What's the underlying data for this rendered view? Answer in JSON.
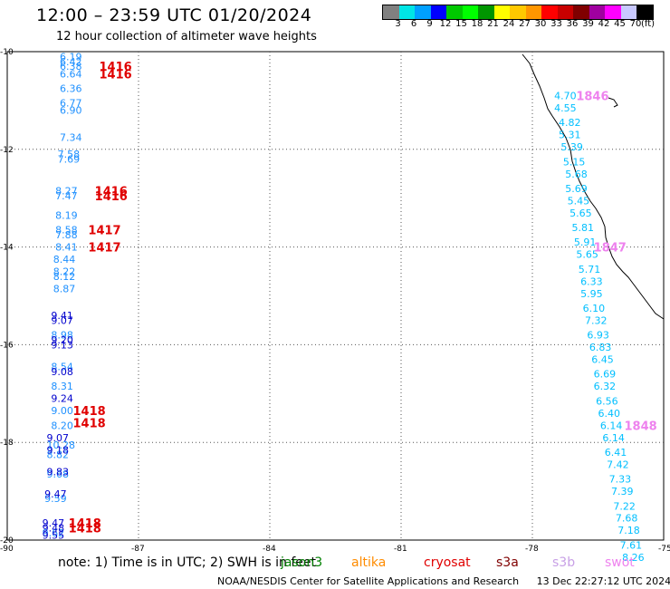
{
  "header": {
    "title": "12:00 – 23:59 UTC 01/20/2024",
    "subtitle": "12 hour collection of altimeter wave heights"
  },
  "colorbar": {
    "colors": [
      "#808080",
      "#00e5e5",
      "#00a0ff",
      "#0000ff",
      "#00c800",
      "#00ff00",
      "#009600",
      "#ffff00",
      "#ffc800",
      "#ff9600",
      "#ff0000",
      "#c80000",
      "#800000",
      "#a000a0",
      "#ff00ff",
      "#c8c8ff",
      "#000000"
    ],
    "labels": [
      "3",
      "6",
      "9",
      "12",
      "15",
      "18",
      "21",
      "24",
      "27",
      "30",
      "33",
      "36",
      "39",
      "42",
      "45",
      "70",
      "(ft)"
    ]
  },
  "axes": {
    "lat_labels": [
      "-10",
      "-12",
      "-14",
      "-16",
      "-18",
      "-20"
    ],
    "lon_labels": [
      "-90",
      "-87",
      "-84",
      "-81",
      "-78",
      "-75"
    ]
  },
  "tracks": [
    {
      "color": "#1e90ff",
      "items": [
        {
          "lon": -88.8,
          "lat": -10.1,
          "v": "6.19"
        },
        {
          "lon": -88.8,
          "lat": -10.2,
          "v": "6.42"
        },
        {
          "lon": -88.8,
          "lat": -10.3,
          "v": "6.38"
        },
        {
          "lon": -88.8,
          "lat": -10.45,
          "v": "6.64"
        },
        {
          "lon": -88.8,
          "lat": -10.75,
          "v": "6.36"
        },
        {
          "lon": -88.8,
          "lat": -11.05,
          "v": "6.77"
        },
        {
          "lon": -88.8,
          "lat": -11.2,
          "v": "6.90"
        },
        {
          "lon": -88.8,
          "lat": -11.75,
          "v": "7.34"
        },
        {
          "lon": -88.85,
          "lat": -12.1,
          "v": "7.58"
        },
        {
          "lon": -88.85,
          "lat": -12.2,
          "v": "7.69"
        },
        {
          "lon": -88.9,
          "lat": -12.85,
          "v": "8.27"
        },
        {
          "lon": -88.9,
          "lat": -12.95,
          "v": "7.47"
        },
        {
          "lon": -88.9,
          "lat": -13.35,
          "v": "8.19"
        },
        {
          "lon": -88.9,
          "lat": -13.65,
          "v": "8.58"
        },
        {
          "lon": -88.9,
          "lat": -13.75,
          "v": "7.88"
        },
        {
          "lon": -88.9,
          "lat": -14.0,
          "v": "8.41"
        },
        {
          "lon": -88.95,
          "lat": -14.25,
          "v": "8.44"
        },
        {
          "lon": -88.95,
          "lat": -14.5,
          "v": "8.22"
        },
        {
          "lon": -88.95,
          "lat": -14.6,
          "v": "8.12"
        },
        {
          "lon": -88.95,
          "lat": -14.85,
          "v": "8.87"
        },
        {
          "lon": -89.0,
          "lat": -15.8,
          "v": "8.98"
        },
        {
          "lon": -89.0,
          "lat": -16.45,
          "v": "8.54"
        },
        {
          "lon": -89.0,
          "lat": -16.85,
          "v": "8.31"
        },
        {
          "lon": -89.0,
          "lat": -17.35,
          "v": "9.00"
        },
        {
          "lon": -89.0,
          "lat": -17.65,
          "v": "8.20"
        },
        {
          "lon": -89.1,
          "lat": -18.05,
          "v": "10.28"
        },
        {
          "lon": -89.1,
          "lat": -18.25,
          "v": "8.82"
        },
        {
          "lon": -89.1,
          "lat": -18.65,
          "v": "9.68"
        },
        {
          "lon": -89.15,
          "lat": -19.15,
          "v": "9.59"
        },
        {
          "lon": -89.2,
          "lat": -19.85,
          "v": "9.62"
        }
      ]
    },
    {
      "color": "#0000cd",
      "items": [
        {
          "lon": -89.0,
          "lat": -15.4,
          "v": "9.41"
        },
        {
          "lon": -89.0,
          "lat": -15.5,
          "v": "9.07"
        },
        {
          "lon": -89.0,
          "lat": -15.9,
          "v": "9.20"
        },
        {
          "lon": -89.0,
          "lat": -16.0,
          "v": "9.13"
        },
        {
          "lon": -89.0,
          "lat": -16.55,
          "v": "9.08"
        },
        {
          "lon": -89.0,
          "lat": -17.1,
          "v": "9.24"
        },
        {
          "lon": -89.1,
          "lat": -17.9,
          "v": "9.07"
        },
        {
          "lon": -89.1,
          "lat": -18.15,
          "v": "9.18"
        },
        {
          "lon": -89.1,
          "lat": -18.6,
          "v": "9.83"
        },
        {
          "lon": -89.15,
          "lat": -19.05,
          "v": "9.47"
        },
        {
          "lon": -89.2,
          "lat": -19.65,
          "v": "9.47"
        },
        {
          "lon": -89.2,
          "lat": -19.75,
          "v": "9.48"
        },
        {
          "lon": -89.2,
          "lat": -19.9,
          "v": "9.55"
        }
      ]
    },
    {
      "color": "#00bfff",
      "items": [
        {
          "lon": -77.5,
          "lat": -10.9,
          "v": "4.70"
        },
        {
          "lon": -77.5,
          "lat": -11.15,
          "v": "4.55"
        },
        {
          "lon": -77.4,
          "lat": -11.45,
          "v": "4.82"
        },
        {
          "lon": -77.4,
          "lat": -11.7,
          "v": "5.31"
        },
        {
          "lon": -77.35,
          "lat": -11.95,
          "v": "5.39"
        },
        {
          "lon": -77.3,
          "lat": -12.25,
          "v": "5.15"
        },
        {
          "lon": -77.25,
          "lat": -12.5,
          "v": "5.68"
        },
        {
          "lon": -77.25,
          "lat": -12.8,
          "v": "5.69"
        },
        {
          "lon": -77.2,
          "lat": -13.05,
          "v": "5.45"
        },
        {
          "lon": -77.15,
          "lat": -13.3,
          "v": "5.65"
        },
        {
          "lon": -77.1,
          "lat": -13.6,
          "v": "5.81"
        },
        {
          "lon": -77.05,
          "lat": -13.9,
          "v": "5.91"
        },
        {
          "lon": -77.0,
          "lat": -14.15,
          "v": "5.65"
        },
        {
          "lon": -76.95,
          "lat": -14.45,
          "v": "5.71"
        },
        {
          "lon": -76.9,
          "lat": -14.7,
          "v": "6.33"
        },
        {
          "lon": -76.9,
          "lat": -14.95,
          "v": "5.95"
        },
        {
          "lon": -76.85,
          "lat": -15.25,
          "v": "6.10"
        },
        {
          "lon": -76.8,
          "lat": -15.5,
          "v": "7.32"
        },
        {
          "lon": -76.75,
          "lat": -15.8,
          "v": "6.93"
        },
        {
          "lon": -76.7,
          "lat": -16.05,
          "v": "6.83"
        },
        {
          "lon": -76.65,
          "lat": -16.3,
          "v": "6.45"
        },
        {
          "lon": -76.6,
          "lat": -16.6,
          "v": "6.69"
        },
        {
          "lon": -76.6,
          "lat": -16.85,
          "v": "6.32"
        },
        {
          "lon": -76.55,
          "lat": -17.15,
          "v": "6.56"
        },
        {
          "lon": -76.5,
          "lat": -17.4,
          "v": "6.40"
        },
        {
          "lon": -76.45,
          "lat": -17.65,
          "v": "6.14"
        },
        {
          "lon": -76.4,
          "lat": -17.9,
          "v": "6.14"
        },
        {
          "lon": -76.35,
          "lat": -18.2,
          "v": "6.41"
        },
        {
          "lon": -76.3,
          "lat": -18.45,
          "v": "7.42"
        },
        {
          "lon": -76.25,
          "lat": -18.75,
          "v": "7.33"
        },
        {
          "lon": -76.2,
          "lat": -19.0,
          "v": "7.39"
        },
        {
          "lon": -76.15,
          "lat": -19.3,
          "v": "7.22"
        },
        {
          "lon": -76.1,
          "lat": -19.55,
          "v": "7.68"
        },
        {
          "lon": -76.05,
          "lat": -19.8,
          "v": "7.18"
        },
        {
          "lon": -76.0,
          "lat": -20.1,
          "v": "7.61"
        },
        {
          "lon": -75.95,
          "lat": -20.35,
          "v": "8.26"
        }
      ]
    }
  ],
  "time_labels": [
    {
      "lon": -87.9,
      "lat": -10.3,
      "v": "1416",
      "color": "#e00000"
    },
    {
      "lon": -87.9,
      "lat": -10.45,
      "v": "1416",
      "color": "#e00000"
    },
    {
      "lon": -88.0,
      "lat": -12.85,
      "v": "1416",
      "color": "#e00000"
    },
    {
      "lon": -88.0,
      "lat": -12.95,
      "v": "1416",
      "color": "#e00000"
    },
    {
      "lon": -88.15,
      "lat": -13.65,
      "v": "1417",
      "color": "#e00000"
    },
    {
      "lon": -88.15,
      "lat": -14.0,
      "v": "1417",
      "color": "#e00000"
    },
    {
      "lon": -88.5,
      "lat": -17.35,
      "v": "1418",
      "color": "#e00000"
    },
    {
      "lon": -88.5,
      "lat": -17.6,
      "v": "1418",
      "color": "#e00000"
    },
    {
      "lon": -88.6,
      "lat": -19.65,
      "v": "1418",
      "color": "#e00000"
    },
    {
      "lon": -88.6,
      "lat": -19.75,
      "v": "1418",
      "color": "#e00000"
    },
    {
      "lon": -77.0,
      "lat": -10.9,
      "v": "1846",
      "color": "#ee82ee"
    },
    {
      "lon": -76.6,
      "lat": -14.0,
      "v": "1847",
      "color": "#ee82ee"
    },
    {
      "lon": -75.9,
      "lat": -17.65,
      "v": "1848",
      "color": "#ee82ee"
    }
  ],
  "legend": {
    "note": "note: 1) Time is in UTC; 2) SWH is in feet",
    "satellites": [
      {
        "name": "jason3",
        "color": "#008000"
      },
      {
        "name": "altika",
        "color": "#ff8c00"
      },
      {
        "name": "cryosat",
        "color": "#e00000"
      },
      {
        "name": "s3a",
        "color": "#800000"
      },
      {
        "name": "s3b",
        "color": "#c8a0e6"
      },
      {
        "name": "swot",
        "color": "#ee82ee"
      }
    ]
  },
  "footer": {
    "agency": "NOAA/NESDIS Center for Satellite Applications and Research",
    "timestamp": "13 Dec 22:27:12 UTC 2024"
  }
}
